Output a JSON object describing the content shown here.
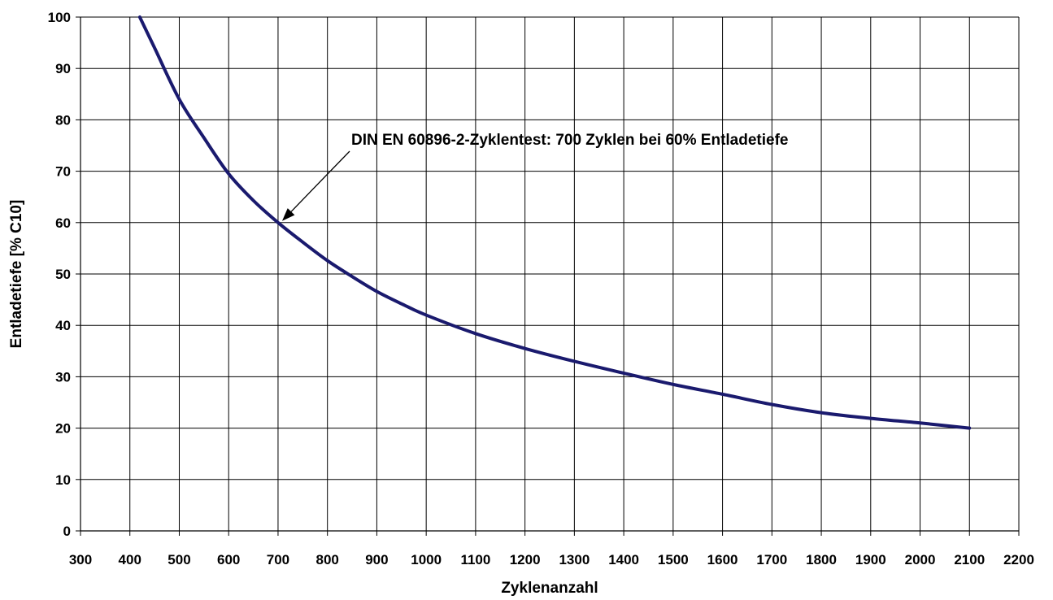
{
  "chart_data": {
    "type": "line",
    "title": "",
    "xlabel": "Zyklenanzahl",
    "ylabel": "Entladetiefe [% C10]",
    "xlim": [
      300,
      2200
    ],
    "ylim": [
      0,
      100
    ],
    "xticks": [
      300,
      400,
      500,
      600,
      700,
      800,
      900,
      1000,
      1100,
      1200,
      1300,
      1400,
      1500,
      1600,
      1700,
      1800,
      1900,
      2000,
      2100,
      2200
    ],
    "yticks": [
      0,
      10,
      20,
      30,
      40,
      50,
      60,
      70,
      80,
      90,
      100
    ],
    "grid": true,
    "series": [
      {
        "name": "",
        "color": "#1a1a6e",
        "x": [
          420,
          450,
          500,
          550,
          600,
          650,
          700,
          750,
          800,
          850,
          900,
          950,
          1000,
          1100,
          1200,
          1300,
          1400,
          1500,
          1600,
          1700,
          1800,
          1900,
          2000,
          2100
        ],
        "y": [
          100,
          94,
          84,
          76.5,
          69.5,
          64.3,
          60,
          56.2,
          52.6,
          49.5,
          46.6,
          44.2,
          42,
          38.4,
          35.5,
          33,
          30.7,
          28.5,
          26.6,
          24.6,
          23,
          21.9,
          21,
          20
        ]
      }
    ],
    "annotation": {
      "text": "DIN EN 60896-2-Zyklentest: 700 Zyklen bei 60% Entladetiefe",
      "point": [
        700,
        60
      ]
    }
  }
}
